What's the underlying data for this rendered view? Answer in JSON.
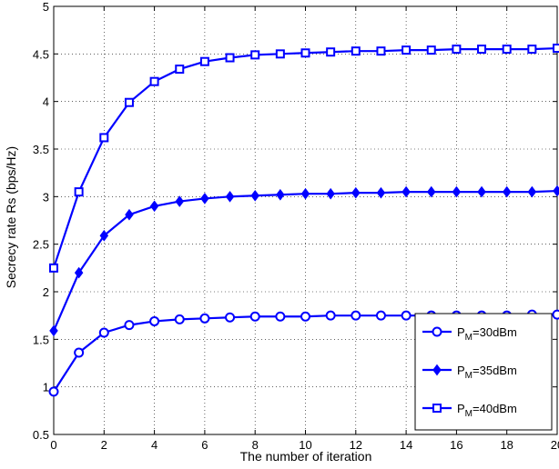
{
  "chart_data": {
    "type": "line",
    "title": "",
    "xlabel": "The number of iteration",
    "ylabel": "Secrecy rate Rs (bps/Hz)",
    "xlim": [
      0,
      20
    ],
    "ylim": [
      0.5,
      5
    ],
    "xticks": [
      0,
      2,
      4,
      6,
      8,
      10,
      12,
      14,
      16,
      18,
      20
    ],
    "yticks": [
      0.5,
      1,
      1.5,
      2,
      2.5,
      3,
      3.5,
      4,
      4.5,
      5
    ],
    "grid": true,
    "grid_style": "dotted",
    "legend_position": "bottom-right",
    "line_color": "#0000ff",
    "x": [
      0,
      1,
      2,
      3,
      4,
      5,
      6,
      7,
      8,
      9,
      10,
      11,
      12,
      13,
      14,
      15,
      16,
      17,
      18,
      19,
      20
    ],
    "series": [
      {
        "name": "P_M=30dBm",
        "legend_base": "P",
        "legend_sub": "M",
        "legend_rest": "=30dBm",
        "marker": "circle",
        "values": [
          0.95,
          1.36,
          1.57,
          1.65,
          1.69,
          1.71,
          1.72,
          1.73,
          1.74,
          1.74,
          1.74,
          1.75,
          1.75,
          1.75,
          1.75,
          1.75,
          1.75,
          1.75,
          1.75,
          1.76,
          1.76
        ]
      },
      {
        "name": "P_M=35dBm",
        "legend_base": "P",
        "legend_sub": "M",
        "legend_rest": "=35dBm",
        "marker": "diamond",
        "values": [
          1.59,
          2.2,
          2.59,
          2.81,
          2.9,
          2.95,
          2.98,
          3.0,
          3.01,
          3.02,
          3.03,
          3.03,
          3.04,
          3.04,
          3.05,
          3.05,
          3.05,
          3.05,
          3.05,
          3.05,
          3.06
        ]
      },
      {
        "name": "P_M=40dBm",
        "legend_base": "P",
        "legend_sub": "M",
        "legend_rest": "=40dBm",
        "marker": "square",
        "values": [
          2.25,
          3.05,
          3.62,
          3.99,
          4.21,
          4.34,
          4.42,
          4.46,
          4.49,
          4.5,
          4.51,
          4.52,
          4.53,
          4.53,
          4.54,
          4.54,
          4.55,
          4.55,
          4.55,
          4.55,
          4.56
        ]
      }
    ]
  }
}
